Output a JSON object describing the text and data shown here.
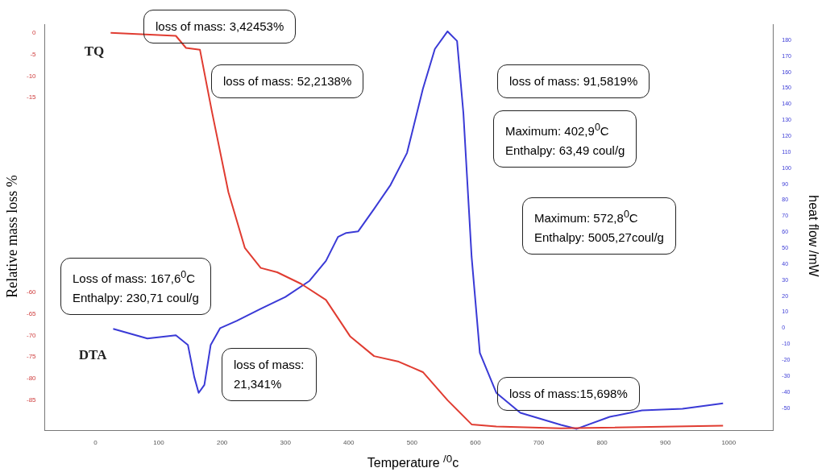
{
  "chart_data": {
    "type": "line",
    "xlabel": "Temperature $^{/0}$c",
    "ylabel": "Relative mass loss %",
    "y2label": "heat flow /mW",
    "xlim": [
      -80,
      1070
    ],
    "xticks": [
      0,
      100,
      200,
      300,
      400,
      500,
      600,
      700,
      800,
      900,
      1000
    ],
    "ylim": [
      -92,
      2
    ],
    "yticks": [
      0,
      -5,
      -10,
      -15,
      -60,
      -65,
      -70,
      -75,
      -80,
      -85
    ],
    "y2lim": [
      -64,
      190
    ],
    "y2ticks": [
      -50,
      -40,
      -30,
      -20,
      -10,
      0,
      10,
      20,
      30,
      40,
      50,
      60,
      70,
      80,
      90,
      100,
      110,
      120,
      130,
      140,
      150,
      160,
      170,
      180
    ],
    "grid": false,
    "legend": false,
    "marker": "none",
    "line_style": "solid",
    "series": [
      {
        "name": "TQ",
        "color": "#e03c31",
        "x": [
          24,
          127,
          143,
          165,
          184,
          210,
          236,
          261,
          287,
          325,
          364,
          402,
          440,
          479,
          517,
          556,
          594,
          633,
          735,
          991
        ],
        "values": [
          0,
          -0.7,
          -3.5,
          -3.9,
          -18.3,
          -36.9,
          -49.8,
          -54.4,
          -55.4,
          -58.1,
          -61.8,
          -70.2,
          -74.8,
          -76.1,
          -78.5,
          -85,
          -90.6,
          -91.1,
          -91.5,
          -90.9
        ]
      },
      {
        "name": "DTA",
        "color": "#3a3ad6",
        "axis": "y2",
        "x": [
          28,
          82,
          127,
          146,
          156,
          163,
          172,
          182,
          197,
          223,
          261,
          300,
          338,
          364,
          383,
          396,
          415,
          440,
          466,
          492,
          517,
          536,
          556,
          571,
          581,
          594,
          607,
          633,
          671,
          735,
          760,
          812,
          863,
          927,
          991
        ],
        "values": [
          -0.5,
          -6.5,
          -4.5,
          -10.5,
          -30.5,
          -40.5,
          -35.5,
          -10.5,
          0,
          4.5,
          12,
          19.5,
          29.5,
          42,
          57,
          59.5,
          60.5,
          74.5,
          89.5,
          109.5,
          149.5,
          174.5,
          185.5,
          179.5,
          134.5,
          44.5,
          -15.5,
          -40.5,
          -53,
          -60.5,
          -63,
          -55.5,
          -51.5,
          -50.5,
          -47
        ]
      }
    ],
    "annotations": [
      "loss of mass: 3,42453%",
      "loss of mass: 52,2138%",
      "loss of mass: 91,5819%",
      "Maximum: 402,9$^{0}$C\nEnthalpy: 63,49 coul/g",
      "Maximum: 572,8$^{0}$C\nEnthalpy: 5005,27coul/g",
      "Loss of mass: 167,6$^{0}$C\nEnthalpy: 230,71 coul/g",
      "loss of mass:\n21,341%",
      "loss of mass:15,698%"
    ]
  }
}
